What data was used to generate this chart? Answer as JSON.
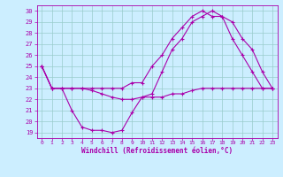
{
  "xlabel": "Windchill (Refroidissement éolien,°C)",
  "bg_color": "#cceeff",
  "line_color": "#aa00aa",
  "grid_color": "#99cccc",
  "xlim": [
    -0.5,
    23.5
  ],
  "ylim": [
    18.5,
    30.5
  ],
  "yticks": [
    19,
    20,
    21,
    22,
    23,
    24,
    25,
    26,
    27,
    28,
    29,
    30
  ],
  "xticks": [
    0,
    1,
    2,
    3,
    4,
    5,
    6,
    7,
    8,
    9,
    10,
    11,
    12,
    13,
    14,
    15,
    16,
    17,
    18,
    19,
    20,
    21,
    22,
    23
  ],
  "series": [
    [
      25.0,
      23.0,
      23.0,
      21.0,
      19.5,
      19.2,
      19.2,
      19.0,
      19.2,
      20.8,
      22.2,
      22.5,
      24.5,
      26.5,
      27.5,
      29.0,
      29.5,
      30.0,
      29.5,
      27.5,
      26.0,
      24.5,
      23.0,
      23.0
    ],
    [
      25.0,
      23.0,
      23.0,
      23.0,
      23.0,
      22.8,
      22.5,
      22.2,
      22.0,
      22.0,
      22.2,
      22.2,
      22.2,
      22.5,
      22.5,
      22.8,
      23.0,
      23.0,
      23.0,
      23.0,
      23.0,
      23.0,
      23.0,
      23.0
    ],
    [
      25.0,
      23.0,
      23.0,
      23.0,
      23.0,
      23.0,
      23.0,
      23.0,
      23.0,
      23.5,
      23.5,
      25.0,
      26.0,
      27.5,
      28.5,
      29.5,
      30.0,
      29.5,
      29.5,
      29.0,
      27.5,
      26.5,
      24.5,
      23.0
    ]
  ]
}
